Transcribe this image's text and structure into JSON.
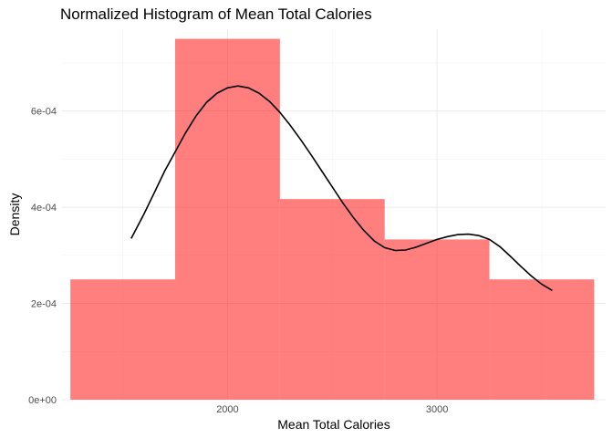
{
  "chart_data": {
    "type": "bar",
    "subtype": "histogram-with-density",
    "title": "Normalized Histogram of Mean Total Calories",
    "xlabel": "Mean Total Calories",
    "ylabel": "Density",
    "xlim": [
      1210,
      3805
    ],
    "ylim": [
      0,
      0.00077
    ],
    "x_ticks": [
      2000,
      3000
    ],
    "x_tick_labels": [
      "2000",
      "3000"
    ],
    "x_minor_ticks": [
      1500,
      2500,
      3500
    ],
    "y_ticks": [
      0,
      0.0002,
      0.0004,
      0.0006
    ],
    "y_tick_labels": [
      "0e+00",
      "2e-04",
      "4e-04",
      "6e-04"
    ],
    "y_minor_ticks": [
      0.0001,
      0.0003,
      0.0005,
      0.0007
    ],
    "grid": true,
    "bar_color": "#ff0000",
    "bar_opacity": 0.5,
    "bins": [
      {
        "x0": 1250,
        "x1": 1750,
        "density": 0.00025
      },
      {
        "x0": 1750,
        "x1": 2250,
        "density": 0.00075
      },
      {
        "x0": 2250,
        "x1": 2750,
        "density": 0.000417
      },
      {
        "x0": 2750,
        "x1": 3250,
        "density": 0.000333
      },
      {
        "x0": 3250,
        "x1": 3750,
        "density": 0.00025
      }
    ],
    "density_curve": {
      "color": "#000000",
      "x": [
        1540,
        1600,
        1650,
        1700,
        1750,
        1800,
        1850,
        1900,
        1950,
        2000,
        2050,
        2100,
        2150,
        2200,
        2250,
        2300,
        2350,
        2400,
        2450,
        2500,
        2550,
        2600,
        2650,
        2700,
        2750,
        2800,
        2850,
        2900,
        2950,
        3000,
        3050,
        3100,
        3150,
        3200,
        3250,
        3300,
        3350,
        3400,
        3450,
        3500,
        3550
      ],
      "y": [
        0.000335,
        0.000385,
        0.00043,
        0.000475,
        0.000515,
        0.000555,
        0.00059,
        0.000618,
        0.000637,
        0.000648,
        0.000652,
        0.000648,
        0.000637,
        0.00062,
        0.000597,
        0.00057,
        0.00054,
        0.000508,
        0.000475,
        0.000442,
        0.000409,
        0.000379,
        0.000352,
        0.00033,
        0.000316,
        0.00031,
        0.000311,
        0.000317,
        0.000325,
        0.000333,
        0.000339,
        0.000343,
        0.000344,
        0.000341,
        0.000333,
        0.000318,
        0.000298,
        0.000277,
        0.000257,
        0.00024,
        0.000227
      ]
    }
  }
}
